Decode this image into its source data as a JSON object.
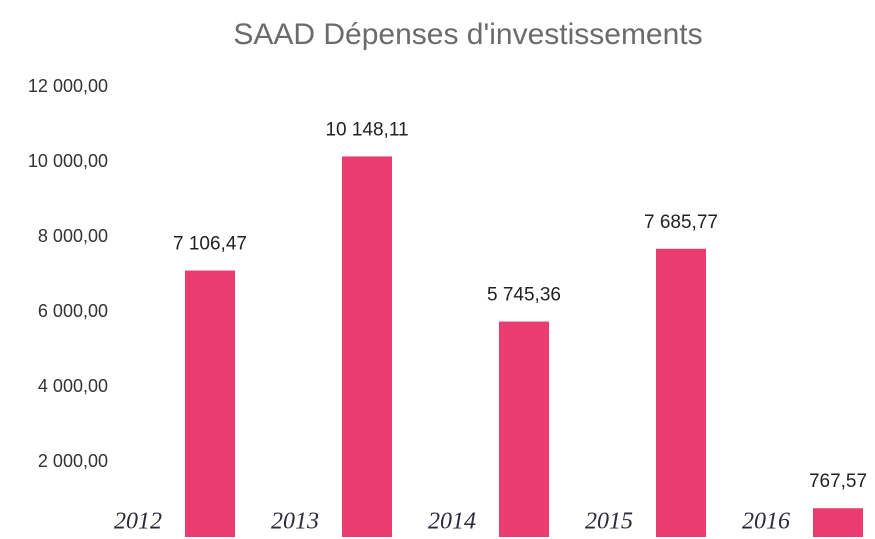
{
  "chart_data": {
    "type": "bar",
    "title": "SAAD Dépenses d'investissements",
    "categories": [
      "2012",
      "2013",
      "2014",
      "2015",
      "2016"
    ],
    "values": [
      7106.47,
      10148.11,
      5745.36,
      7685.77,
      767.57
    ],
    "value_labels": [
      "7 106,47",
      "10 148,11",
      "5 745,36",
      "7 685,77",
      "767,57"
    ],
    "color": "#ea3c6e",
    "ylim": [
      0,
      12000
    ],
    "yticks": [
      {
        "value": 2000,
        "label": "2 000,00"
      },
      {
        "value": 4000,
        "label": "4 000,00"
      },
      {
        "value": 6000,
        "label": "6 000,00"
      },
      {
        "value": 8000,
        "label": "8 000,00"
      },
      {
        "value": 10000,
        "label": "10 000,00"
      },
      {
        "value": 12000,
        "label": "12 000,00"
      }
    ],
    "grid": false
  }
}
